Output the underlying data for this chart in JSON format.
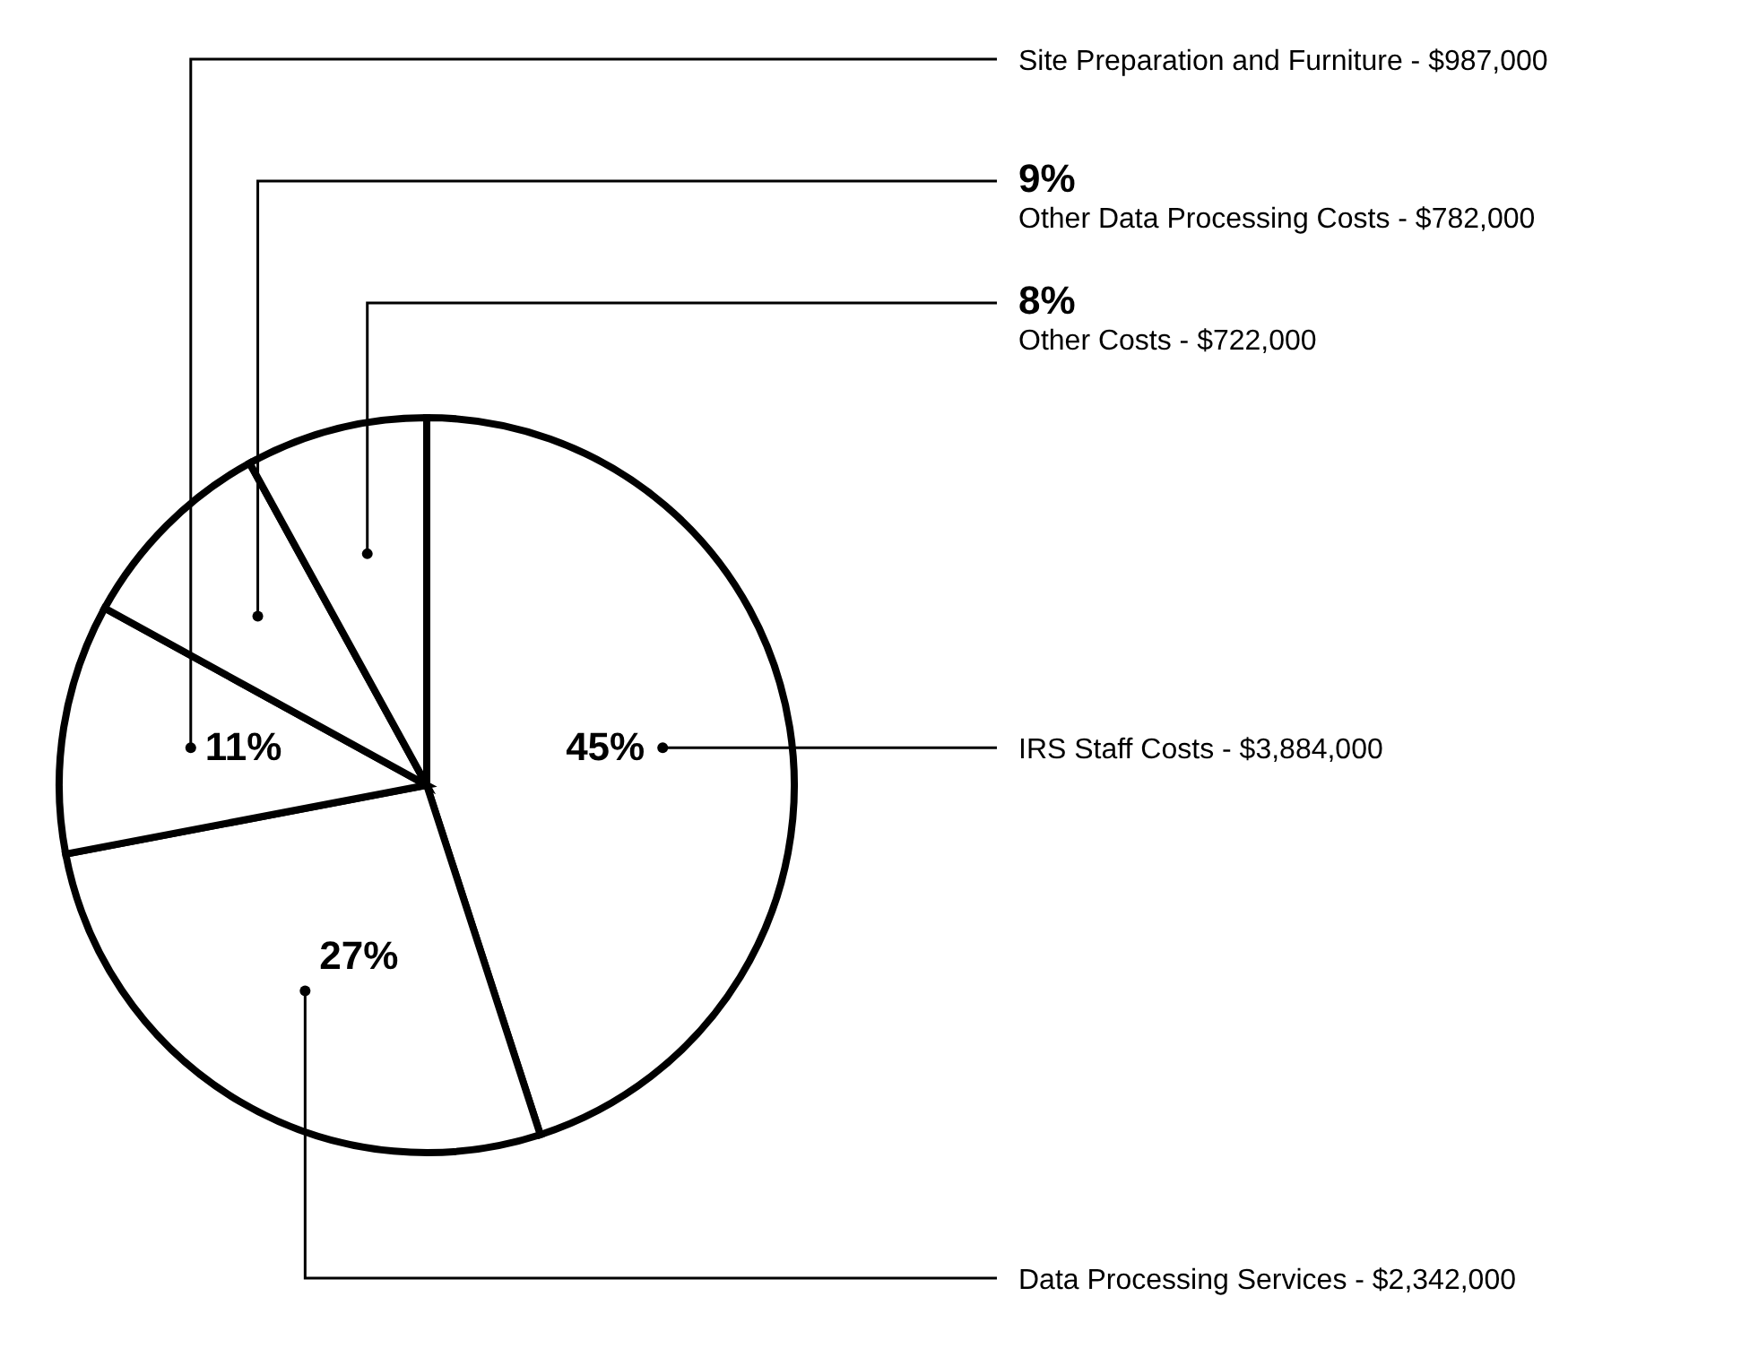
{
  "chart_data": {
    "type": "pie",
    "categories": [
      "IRS Staff Costs - $3,884,000",
      "Data Processing Services - $2,342,000",
      "Site Preparation and Furniture - $987,000",
      "Other Data Processing Costs - $782,000",
      "Other Costs - $722,000"
    ],
    "values": [
      45,
      27,
      11,
      9,
      8
    ],
    "value_labels": [
      "45%",
      "27%",
      "11%",
      "9%",
      "8%"
    ],
    "colors": [
      "#ffffff",
      "#ffffff",
      "#ffffff",
      "#ffffff",
      "#ffffff"
    ],
    "legend": false
  }
}
